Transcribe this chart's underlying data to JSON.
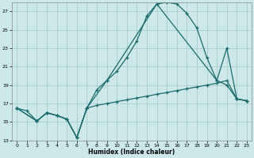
{
  "xlabel": "Humidex (Indice chaleur)",
  "background_color": "#cce8e8",
  "grid_color": "#aacccc",
  "line_color": "#1a6b6b",
  "xlim": [
    -0.5,
    23.5
  ],
  "ylim": [
    13,
    28
  ],
  "yticks": [
    13,
    15,
    17,
    19,
    21,
    23,
    25,
    27
  ],
  "xticks": [
    0,
    1,
    2,
    3,
    4,
    5,
    6,
    7,
    8,
    9,
    10,
    11,
    12,
    13,
    14,
    15,
    16,
    17,
    18,
    19,
    20,
    21,
    22,
    23
  ],
  "line1_x": [
    0,
    1,
    2,
    3,
    4,
    5,
    6,
    7,
    8,
    9,
    10,
    11,
    12,
    13,
    14,
    15,
    16,
    17,
    18,
    19,
    20,
    21,
    22,
    23
  ],
  "line1_y": [
    16.5,
    16.2,
    15.1,
    16.0,
    15.7,
    15.3,
    13.3,
    16.5,
    18.5,
    19.5,
    20.5,
    22.0,
    23.8,
    26.5,
    27.8,
    28.0,
    27.8,
    26.8,
    25.2,
    22.0,
    19.5,
    19.0,
    17.5,
    17.3
  ],
  "line2_x": [
    0,
    2,
    3,
    4,
    5,
    6,
    7,
    8,
    9,
    10,
    11,
    12,
    13,
    14,
    15,
    16,
    17,
    18,
    19,
    20,
    21,
    22,
    23
  ],
  "line2_y": [
    16.5,
    15.1,
    16.0,
    15.7,
    15.3,
    13.3,
    16.5,
    16.8,
    17.0,
    17.2,
    17.4,
    17.6,
    17.8,
    18.0,
    18.2,
    18.4,
    18.6,
    18.8,
    19.0,
    19.2,
    19.5,
    17.5,
    17.3
  ],
  "line3_x": [
    0,
    2,
    3,
    4,
    5,
    6,
    7,
    9,
    14,
    20,
    21,
    22,
    23
  ],
  "line3_y": [
    16.5,
    15.1,
    16.0,
    15.7,
    15.3,
    13.3,
    16.5,
    19.5,
    27.8,
    19.5,
    23.0,
    17.5,
    17.3
  ]
}
